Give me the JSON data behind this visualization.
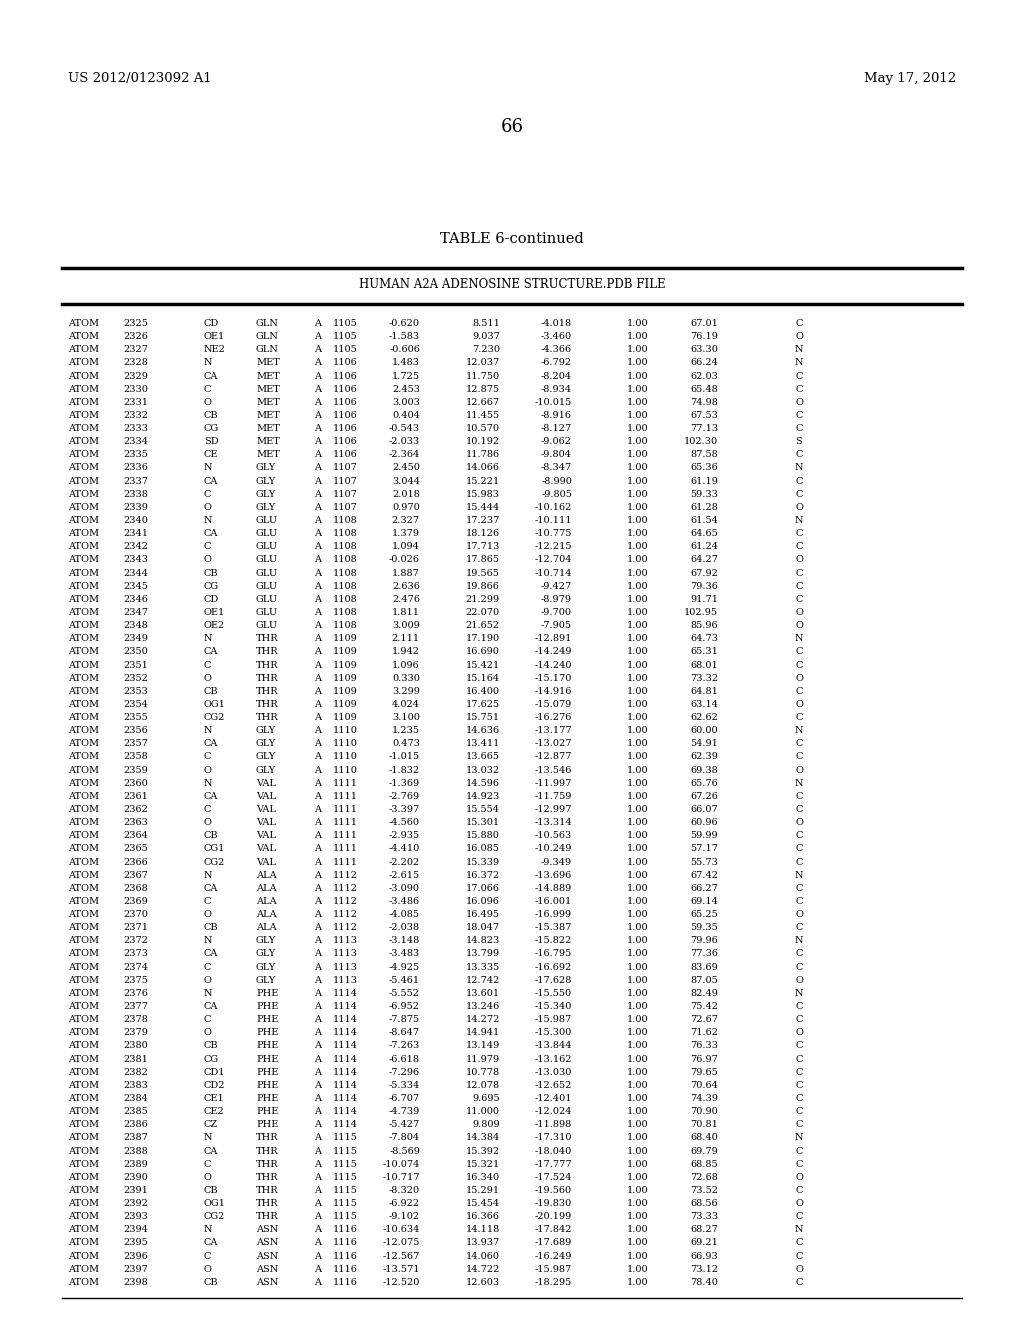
{
  "header_left": "US 2012/0123092 A1",
  "header_right": "May 17, 2012",
  "page_number": "66",
  "table_title": "TABLE 6-continued",
  "table_subtitle": "HUMAN A2A ADENOSINE STRUCTURE.PDB FILE",
  "rows": [
    [
      "ATOM",
      "2325",
      "CD",
      "GLN",
      "A",
      "1105",
      "-0.620",
      "8.511",
      "-4.018",
      "1.00",
      "67.01",
      "C"
    ],
    [
      "ATOM",
      "2326",
      "OE1",
      "GLN",
      "A",
      "1105",
      "-1.583",
      "9.037",
      "-3.460",
      "1.00",
      "76.19",
      "O"
    ],
    [
      "ATOM",
      "2327",
      "NE2",
      "GLN",
      "A",
      "1105",
      "-0.606",
      "7.230",
      "-4.366",
      "1.00",
      "63.30",
      "N"
    ],
    [
      "ATOM",
      "2328",
      "N",
      "MET",
      "A",
      "1106",
      "1.483",
      "12.037",
      "-6.792",
      "1.00",
      "66.24",
      "N"
    ],
    [
      "ATOM",
      "2329",
      "CA",
      "MET",
      "A",
      "1106",
      "1.725",
      "11.750",
      "-8.204",
      "1.00",
      "62.03",
      "C"
    ],
    [
      "ATOM",
      "2330",
      "C",
      "MET",
      "A",
      "1106",
      "2.453",
      "12.875",
      "-8.934",
      "1.00",
      "65.48",
      "C"
    ],
    [
      "ATOM",
      "2331",
      "O",
      "MET",
      "A",
      "1106",
      "3.003",
      "12.667",
      "-10.015",
      "1.00",
      "74.98",
      "O"
    ],
    [
      "ATOM",
      "2332",
      "CB",
      "MET",
      "A",
      "1106",
      "0.404",
      "11.455",
      "-8.916",
      "1.00",
      "67.53",
      "C"
    ],
    [
      "ATOM",
      "2333",
      "CG",
      "MET",
      "A",
      "1106",
      "-0.543",
      "10.570",
      "-8.127",
      "1.00",
      "77.13",
      "C"
    ],
    [
      "ATOM",
      "2334",
      "SD",
      "MET",
      "A",
      "1106",
      "-2.033",
      "10.192",
      "-9.062",
      "1.00",
      "102.30",
      "S"
    ],
    [
      "ATOM",
      "2335",
      "CE",
      "MET",
      "A",
      "1106",
      "-2.364",
      "11.786",
      "-9.804",
      "1.00",
      "87.58",
      "C"
    ],
    [
      "ATOM",
      "2336",
      "N",
      "GLY",
      "A",
      "1107",
      "2.450",
      "14.066",
      "-8.347",
      "1.00",
      "65.36",
      "N"
    ],
    [
      "ATOM",
      "2337",
      "CA",
      "GLY",
      "A",
      "1107",
      "3.044",
      "15.221",
      "-8.990",
      "1.00",
      "61.19",
      "C"
    ],
    [
      "ATOM",
      "2338",
      "C",
      "GLY",
      "A",
      "1107",
      "2.018",
      "15.983",
      "-9.805",
      "1.00",
      "59.33",
      "C"
    ],
    [
      "ATOM",
      "2339",
      "O",
      "GLY",
      "A",
      "1107",
      "0.970",
      "15.444",
      "-10.162",
      "1.00",
      "61.28",
      "O"
    ],
    [
      "ATOM",
      "2340",
      "N",
      "GLU",
      "A",
      "1108",
      "2.327",
      "17.237",
      "-10.111",
      "1.00",
      "61.54",
      "N"
    ],
    [
      "ATOM",
      "2341",
      "CA",
      "GLU",
      "A",
      "1108",
      "1.379",
      "18.126",
      "-10.775",
      "1.00",
      "64.65",
      "C"
    ],
    [
      "ATOM",
      "2342",
      "C",
      "GLU",
      "A",
      "1108",
      "1.094",
      "17.713",
      "-12.215",
      "1.00",
      "61.24",
      "C"
    ],
    [
      "ATOM",
      "2343",
      "O",
      "GLU",
      "A",
      "1108",
      "-0.026",
      "17.865",
      "-12.704",
      "1.00",
      "64.27",
      "O"
    ],
    [
      "ATOM",
      "2344",
      "CB",
      "GLU",
      "A",
      "1108",
      "1.887",
      "19.565",
      "-10.714",
      "1.00",
      "67.92",
      "C"
    ],
    [
      "ATOM",
      "2345",
      "CG",
      "GLU",
      "A",
      "1108",
      "2.636",
      "19.866",
      "-9.427",
      "1.00",
      "79.36",
      "C"
    ],
    [
      "ATOM",
      "2346",
      "CD",
      "GLU",
      "A",
      "1108",
      "2.476",
      "21.299",
      "-8.979",
      "1.00",
      "91.71",
      "C"
    ],
    [
      "ATOM",
      "2347",
      "OE1",
      "GLU",
      "A",
      "1108",
      "1.811",
      "22.070",
      "-9.700",
      "1.00",
      "102.95",
      "O"
    ],
    [
      "ATOM",
      "2348",
      "OE2",
      "GLU",
      "A",
      "1108",
      "3.009",
      "21.652",
      "-7.905",
      "1.00",
      "85.96",
      "O"
    ],
    [
      "ATOM",
      "2349",
      "N",
      "THR",
      "A",
      "1109",
      "2.111",
      "17.190",
      "-12.891",
      "1.00",
      "64.73",
      "N"
    ],
    [
      "ATOM",
      "2350",
      "CA",
      "THR",
      "A",
      "1109",
      "1.942",
      "16.690",
      "-14.249",
      "1.00",
      "65.31",
      "C"
    ],
    [
      "ATOM",
      "2351",
      "C",
      "THR",
      "A",
      "1109",
      "1.096",
      "15.421",
      "-14.240",
      "1.00",
      "68.01",
      "C"
    ],
    [
      "ATOM",
      "2352",
      "O",
      "THR",
      "A",
      "1109",
      "0.330",
      "15.164",
      "-15.170",
      "1.00",
      "73.32",
      "O"
    ],
    [
      "ATOM",
      "2353",
      "CB",
      "THR",
      "A",
      "1109",
      "3.299",
      "16.400",
      "-14.916",
      "1.00",
      "64.81",
      "C"
    ],
    [
      "ATOM",
      "2354",
      "OG1",
      "THR",
      "A",
      "1109",
      "4.024",
      "17.625",
      "-15.079",
      "1.00",
      "63.14",
      "O"
    ],
    [
      "ATOM",
      "2355",
      "CG2",
      "THR",
      "A",
      "1109",
      "3.100",
      "15.751",
      "-16.276",
      "1.00",
      "62.62",
      "C"
    ],
    [
      "ATOM",
      "2356",
      "N",
      "GLY",
      "A",
      "1110",
      "1.235",
      "14.636",
      "-13.177",
      "1.00",
      "60.00",
      "N"
    ],
    [
      "ATOM",
      "2357",
      "CA",
      "GLY",
      "A",
      "1110",
      "0.473",
      "13.411",
      "-13.027",
      "1.00",
      "54.91",
      "C"
    ],
    [
      "ATOM",
      "2358",
      "C",
      "GLY",
      "A",
      "1110",
      "-1.015",
      "13.665",
      "-12.877",
      "1.00",
      "62.39",
      "C"
    ],
    [
      "ATOM",
      "2359",
      "O",
      "GLY",
      "A",
      "1110",
      "-1.832",
      "13.032",
      "-13.546",
      "1.00",
      "69.38",
      "O"
    ],
    [
      "ATOM",
      "2360",
      "N",
      "VAL",
      "A",
      "1111",
      "-1.369",
      "14.596",
      "-11.997",
      "1.00",
      "65.76",
      "N"
    ],
    [
      "ATOM",
      "2361",
      "CA",
      "VAL",
      "A",
      "1111",
      "-2.769",
      "14.923",
      "-11.759",
      "1.00",
      "67.26",
      "C"
    ],
    [
      "ATOM",
      "2362",
      "C",
      "VAL",
      "A",
      "1111",
      "-3.397",
      "15.554",
      "-12.997",
      "1.00",
      "66.07",
      "C"
    ],
    [
      "ATOM",
      "2363",
      "O",
      "VAL",
      "A",
      "1111",
      "-4.560",
      "15.301",
      "-13.314",
      "1.00",
      "60.96",
      "O"
    ],
    [
      "ATOM",
      "2364",
      "CB",
      "VAL",
      "A",
      "1111",
      "-2.935",
      "15.880",
      "-10.563",
      "1.00",
      "59.99",
      "C"
    ],
    [
      "ATOM",
      "2365",
      "CG1",
      "VAL",
      "A",
      "1111",
      "-4.410",
      "16.085",
      "-10.249",
      "1.00",
      "57.17",
      "C"
    ],
    [
      "ATOM",
      "2366",
      "CG2",
      "VAL",
      "A",
      "1111",
      "-2.202",
      "15.339",
      "-9.349",
      "1.00",
      "55.73",
      "C"
    ],
    [
      "ATOM",
      "2367",
      "N",
      "ALA",
      "A",
      "1112",
      "-2.615",
      "16.372",
      "-13.696",
      "1.00",
      "67.42",
      "N"
    ],
    [
      "ATOM",
      "2368",
      "CA",
      "ALA",
      "A",
      "1112",
      "-3.090",
      "17.066",
      "-14.889",
      "1.00",
      "66.27",
      "C"
    ],
    [
      "ATOM",
      "2369",
      "C",
      "ALA",
      "A",
      "1112",
      "-3.486",
      "16.096",
      "-16.001",
      "1.00",
      "69.14",
      "C"
    ],
    [
      "ATOM",
      "2370",
      "O",
      "ALA",
      "A",
      "1112",
      "-4.085",
      "16.495",
      "-16.999",
      "1.00",
      "65.25",
      "O"
    ],
    [
      "ATOM",
      "2371",
      "CB",
      "ALA",
      "A",
      "1112",
      "-2.038",
      "18.047",
      "-15.387",
      "1.00",
      "59.35",
      "C"
    ],
    [
      "ATOM",
      "2372",
      "N",
      "GLY",
      "A",
      "1113",
      "-3.148",
      "14.823",
      "-15.822",
      "1.00",
      "79.96",
      "N"
    ],
    [
      "ATOM",
      "2373",
      "CA",
      "GLY",
      "A",
      "1113",
      "-3.483",
      "13.799",
      "-16.795",
      "1.00",
      "77.36",
      "C"
    ],
    [
      "ATOM",
      "2374",
      "C",
      "GLY",
      "A",
      "1113",
      "-4.925",
      "13.335",
      "-16.692",
      "1.00",
      "83.69",
      "C"
    ],
    [
      "ATOM",
      "2375",
      "O",
      "GLY",
      "A",
      "1113",
      "-5.461",
      "12.742",
      "-17.628",
      "1.00",
      "87.05",
      "O"
    ],
    [
      "ATOM",
      "2376",
      "N",
      "PHE",
      "A",
      "1114",
      "-5.552",
      "13.601",
      "-15.550",
      "1.00",
      "82.49",
      "N"
    ],
    [
      "ATOM",
      "2377",
      "CA",
      "PHE",
      "A",
      "1114",
      "-6.952",
      "13.246",
      "-15.340",
      "1.00",
      "75.42",
      "C"
    ],
    [
      "ATOM",
      "2378",
      "C",
      "PHE",
      "A",
      "1114",
      "-7.875",
      "14.272",
      "-15.987",
      "1.00",
      "72.67",
      "C"
    ],
    [
      "ATOM",
      "2379",
      "O",
      "PHE",
      "A",
      "1114",
      "-8.647",
      "14.941",
      "-15.300",
      "1.00",
      "71.62",
      "O"
    ],
    [
      "ATOM",
      "2380",
      "CB",
      "PHE",
      "A",
      "1114",
      "-7.263",
      "13.149",
      "-13.844",
      "1.00",
      "76.33",
      "C"
    ],
    [
      "ATOM",
      "2381",
      "CG",
      "PHE",
      "A",
      "1114",
      "-6.618",
      "11.979",
      "-13.162",
      "1.00",
      "76.97",
      "C"
    ],
    [
      "ATOM",
      "2382",
      "CD1",
      "PHE",
      "A",
      "1114",
      "-7.296",
      "10.778",
      "-13.030",
      "1.00",
      "79.65",
      "C"
    ],
    [
      "ATOM",
      "2383",
      "CD2",
      "PHE",
      "A",
      "1114",
      "-5.334",
      "12.078",
      "-12.652",
      "1.00",
      "70.64",
      "C"
    ],
    [
      "ATOM",
      "2384",
      "CE1",
      "PHE",
      "A",
      "1114",
      "-6.707",
      "9.695",
      "-12.401",
      "1.00",
      "74.39",
      "C"
    ],
    [
      "ATOM",
      "2385",
      "CE2",
      "PHE",
      "A",
      "1114",
      "-4.739",
      "11.000",
      "-12.024",
      "1.00",
      "70.90",
      "C"
    ],
    [
      "ATOM",
      "2386",
      "CZ",
      "PHE",
      "A",
      "1114",
      "-5.427",
      "9.809",
      "-11.898",
      "1.00",
      "70.81",
      "C"
    ],
    [
      "ATOM",
      "2387",
      "N",
      "THR",
      "A",
      "1115",
      "-7.804",
      "14.384",
      "-17.310",
      "1.00",
      "68.40",
      "N"
    ],
    [
      "ATOM",
      "2388",
      "CA",
      "THR",
      "A",
      "1115",
      "-8.569",
      "15.392",
      "-18.040",
      "1.00",
      "69.79",
      "C"
    ],
    [
      "ATOM",
      "2389",
      "C",
      "THR",
      "A",
      "1115",
      "-10.074",
      "15.321",
      "-17.777",
      "1.00",
      "68.85",
      "C"
    ],
    [
      "ATOM",
      "2390",
      "O",
      "THR",
      "A",
      "1115",
      "-10.717",
      "16.340",
      "-17.524",
      "1.00",
      "72.68",
      "O"
    ],
    [
      "ATOM",
      "2391",
      "CB",
      "THR",
      "A",
      "1115",
      "-8.320",
      "15.291",
      "-19.560",
      "1.00",
      "73.52",
      "C"
    ],
    [
      "ATOM",
      "2392",
      "OG1",
      "THR",
      "A",
      "1115",
      "-6.922",
      "15.454",
      "-19.830",
      "1.00",
      "68.56",
      "O"
    ],
    [
      "ATOM",
      "2393",
      "CG2",
      "THR",
      "A",
      "1115",
      "-9.102",
      "16.366",
      "-20.199",
      "1.00",
      "73.33",
      "C"
    ],
    [
      "ATOM",
      "2394",
      "N",
      "ASN",
      "A",
      "1116",
      "-10.634",
      "14.118",
      "-17.842",
      "1.00",
      "68.27",
      "N"
    ],
    [
      "ATOM",
      "2395",
      "CA",
      "ASN",
      "A",
      "1116",
      "-12.075",
      "13.937",
      "-17.689",
      "1.00",
      "69.21",
      "C"
    ],
    [
      "ATOM",
      "2396",
      "C",
      "ASN",
      "A",
      "1116",
      "-12.567",
      "14.060",
      "-16.249",
      "1.00",
      "66.93",
      "C"
    ],
    [
      "ATOM",
      "2397",
      "O",
      "ASN",
      "A",
      "1116",
      "-13.571",
      "14.722",
      "-15.987",
      "1.00",
      "73.12",
      "O"
    ],
    [
      "ATOM",
      "2398",
      "CB",
      "ASN",
      "A",
      "1116",
      "-12.520",
      "12.603",
      "-18.295",
      "1.00",
      "78.40",
      "C"
    ]
  ]
}
